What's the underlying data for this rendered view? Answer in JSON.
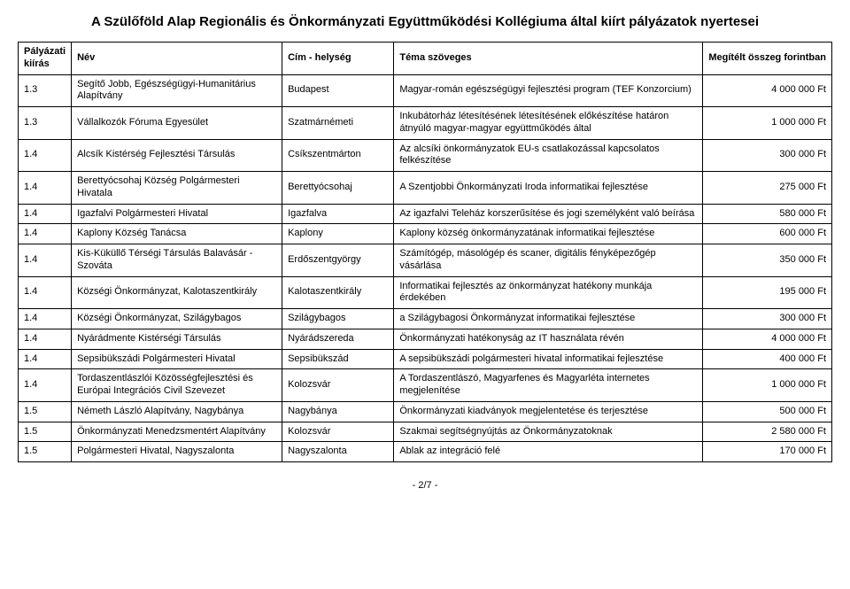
{
  "title": "A Szülőföld Alap Regionális és Önkormányzati Együttműködési Kollégiuma által kiírt pályázatok nyertesei",
  "headers": {
    "kiiras": "Pályázati kiírás",
    "nev": "Név",
    "cim": "Cím - helység",
    "tema": "Téma szöveges",
    "osszeg": "Megítélt összeg forintban"
  },
  "rows": [
    {
      "kiiras": "1.3",
      "nev": "Segítő Jobb, Egészségügyi-Humanitárius Alapítvány",
      "cim": "Budapest",
      "tema": "Magyar-román egészségügyi fejlesztési program (TEF Konzorcium)",
      "osszeg": "4 000 000 Ft"
    },
    {
      "kiiras": "1.3",
      "nev": "Vállalkozók Fóruma Egyesület",
      "cim": "Szatmárnémeti",
      "tema": "Inkubátorház létesítésének létesítésének előkészítése határon átnyúló magyar-magyar együttműködés által",
      "osszeg": "1 000 000 Ft"
    },
    {
      "kiiras": "1.4",
      "nev": "Alcsík Kistérség Fejlesztési Társulás",
      "cim": "Csíkszentmárton",
      "tema": "Az alcsíki önkormányzatok EU-s csatlakozással kapcsolatos felkészítése",
      "osszeg": "300 000 Ft"
    },
    {
      "kiiras": "1.4",
      "nev": "Berettyócsohaj Község Polgármesteri Hivatala",
      "cim": "Berettyócsohaj",
      "tema": "A Szentjobbi Önkormányzati Iroda informatikai fejlesztése",
      "osszeg": "275 000 Ft"
    },
    {
      "kiiras": "1.4",
      "nev": "Igazfalvi Polgármesteri Hivatal",
      "cim": "Igazfalva",
      "tema": "Az igazfalvi Teleház korszerűsítése és jogi személyként való beírása",
      "osszeg": "580 000 Ft"
    },
    {
      "kiiras": "1.4",
      "nev": "Kaplony Község Tanácsa",
      "cim": "Kaplony",
      "tema": "Kaplony község önkormányzatának informatikai fejlesztése",
      "osszeg": "600 000 Ft"
    },
    {
      "kiiras": "1.4",
      "nev": "Kis-Küküllő Térségi Társulás Balavásár - Szováta",
      "cim": "Erdőszentgyörgy",
      "tema": "Számítógép, másológép és scaner, digitális fényképezőgép vásárlása",
      "osszeg": "350 000 Ft"
    },
    {
      "kiiras": "1.4",
      "nev": "Községi Önkormányzat, Kalotaszentkirály",
      "cim": "Kalotaszentkirály",
      "tema": "Informatikai fejlesztés az önkormányzat hatékony munkája érdekében",
      "osszeg": "195 000 Ft"
    },
    {
      "kiiras": "1.4",
      "nev": "Községi Önkormányzat, Szilágybagos",
      "cim": "Szilágybagos",
      "tema": "a Szilágybagosi Önkormányzat informatikai fejlesztése",
      "osszeg": "300 000 Ft"
    },
    {
      "kiiras": "1.4",
      "nev": "Nyárádmente Kistérségi Társulás",
      "cim": "Nyárádszereda",
      "tema": "Önkormányzati hatékonyság az IT használata révén",
      "osszeg": "4 000 000 Ft"
    },
    {
      "kiiras": "1.4",
      "nev": "Sepsibükszádi Polgármesteri Hivatal",
      "cim": "Sepsibükszád",
      "tema": "A sepsibükszádi polgármesteri hivatal informatikai fejlesztése",
      "osszeg": "400 000 Ft"
    },
    {
      "kiiras": "1.4",
      "nev": "Tordaszentlászlói Közösségfejlesztési és Európai Integrációs Civil Szevezet",
      "cim": "Kolozsvár",
      "tema": "A Tordaszentlászó, Magyarfenes és Magyarléta internetes megjelenítése",
      "osszeg": "1 000 000 Ft"
    },
    {
      "kiiras": "1.5",
      "nev": "Németh László Alapítvány, Nagybánya",
      "cim": "Nagybánya",
      "tema": "Önkormányzati kiadványok megjelentetése és terjesztése",
      "osszeg": "500 000 Ft"
    },
    {
      "kiiras": "1.5",
      "nev": "Önkormányzati Menedzsmentért Alapítvány",
      "cim": "Kolozsvár",
      "tema": "Szakmai segítségnyújtás az Önkormányzatoknak",
      "osszeg": "2 580 000 Ft"
    },
    {
      "kiiras": "1.5",
      "nev": "Polgármesteri Hivatal, Nagyszalonta",
      "cim": "Nagyszalonta",
      "tema": "Ablak az integráció felé",
      "osszeg": "170 000 Ft"
    }
  ],
  "page": "- 2/7 -"
}
